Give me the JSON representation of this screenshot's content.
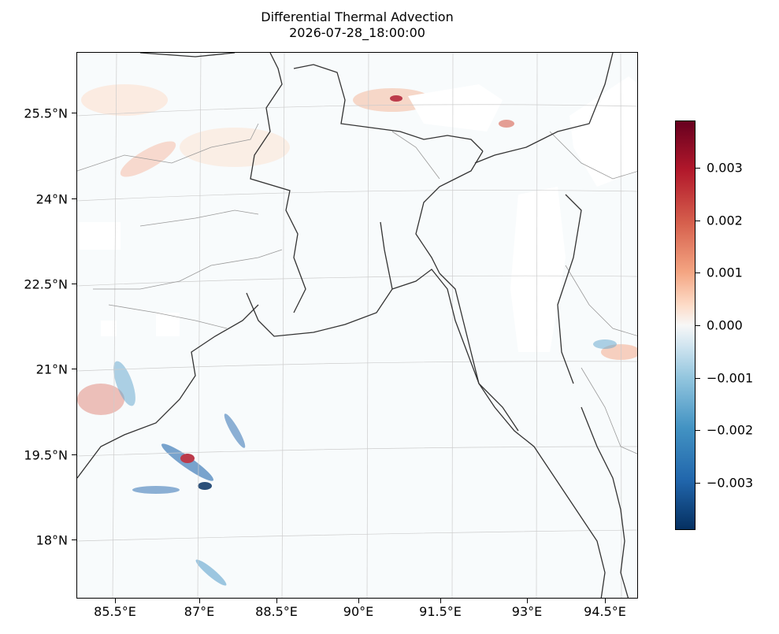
{
  "title": {
    "line1": "Differential Thermal Advection",
    "line2": "2026-07-28_18:00:00"
  },
  "map": {
    "projection": "lambert-conformal",
    "region": "Bangladesh / Bay of Bengal",
    "lat_labels": [
      "25.5°N",
      "24°N",
      "22.5°N",
      "21°N",
      "19.5°N",
      "18°N"
    ],
    "lon_labels": [
      "85.5°E",
      "87°E",
      "88.5°E",
      "90°E",
      "91.5°E",
      "93°E",
      "94.5°E"
    ],
    "gridlines": true,
    "layers": [
      "coastline",
      "country-borders",
      "state-borders",
      "shaded-field"
    ]
  },
  "colorbar": {
    "colormap": "RdBu_r",
    "min": -0.0039,
    "max": 0.0039,
    "tick_labels": [
      "0.003",
      "0.002",
      "0.001",
      "0.000",
      "−0.001",
      "−0.002",
      "−0.003"
    ],
    "tick_values": [
      0.003,
      0.002,
      0.001,
      0.0,
      -0.001,
      -0.002,
      -0.003
    ]
  },
  "colors": {
    "positive": "#b2182b",
    "negative": "#2166ac",
    "neutral": "#f7f7f7",
    "coastline": "#333333",
    "state_border": "#999999"
  }
}
